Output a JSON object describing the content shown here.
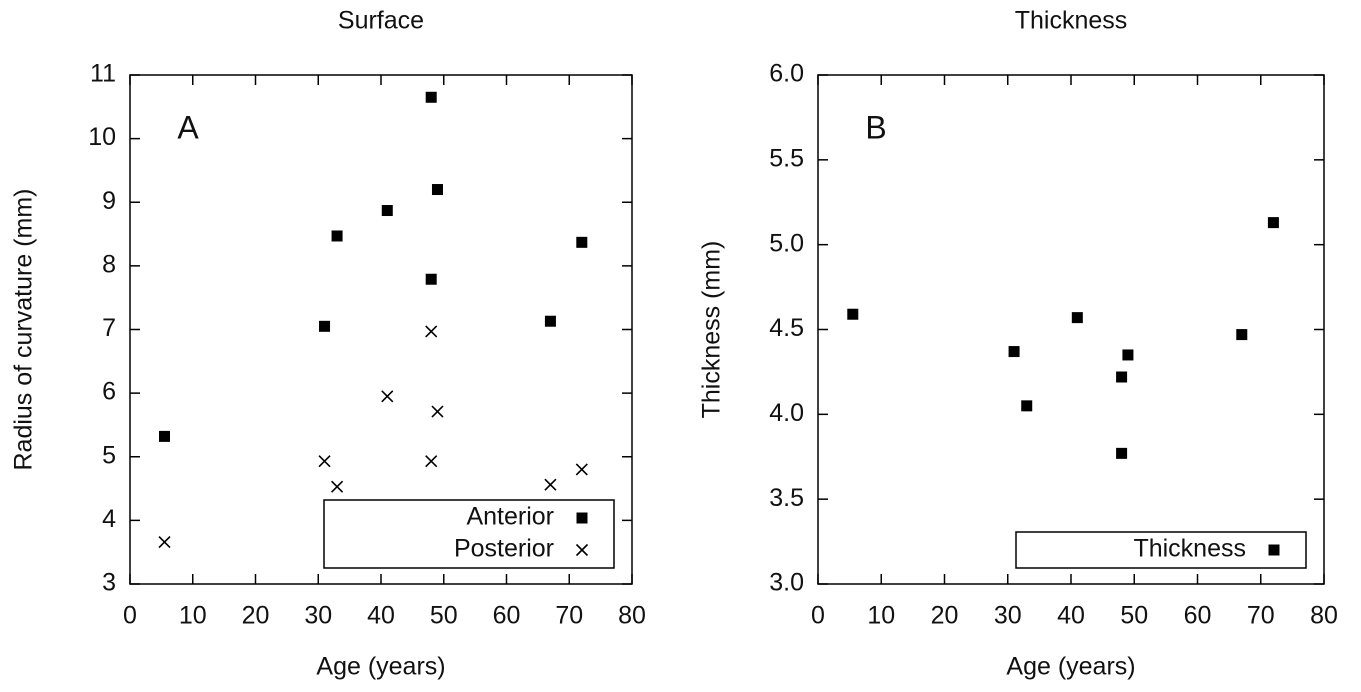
{
  "chart_data": [
    {
      "type": "scatter",
      "title": "Surface",
      "xlabel": "Age (years)",
      "ylabel": "Radius of curvature (mm)",
      "annotation": "A",
      "xlim": [
        0,
        80
      ],
      "xticks": [
        0,
        10,
        20,
        30,
        40,
        50,
        60,
        70,
        80
      ],
      "ylim": [
        3,
        11
      ],
      "yticks": [
        3,
        4,
        5,
        6,
        7,
        8,
        9,
        10,
        11
      ],
      "legend": "lower right",
      "series": [
        {
          "name": "Anterior",
          "color": "#000000",
          "marker": "square",
          "x": [
            5.5,
            31,
            33,
            41,
            48,
            48,
            49,
            67,
            72
          ],
          "y": [
            5.32,
            7.05,
            8.47,
            8.87,
            10.65,
            7.79,
            9.2,
            7.13,
            8.37
          ]
        },
        {
          "name": "Posterior",
          "color": "#000000",
          "marker": "x",
          "x": [
            5.5,
            31,
            33,
            41,
            48,
            48,
            49,
            67,
            72
          ],
          "y": [
            3.66,
            4.93,
            4.53,
            5.95,
            6.97,
            4.93,
            5.71,
            4.56,
            4.8
          ]
        }
      ]
    },
    {
      "type": "scatter",
      "title": "Thickness",
      "xlabel": "Age (years)",
      "ylabel": "Thickness (mm)",
      "annotation": "B",
      "xlim": [
        0,
        80
      ],
      "xticks": [
        0,
        10,
        20,
        30,
        40,
        50,
        60,
        70,
        80
      ],
      "ylim": [
        3,
        6
      ],
      "yticks": [
        {
          "value": 3,
          "label": "3.0"
        },
        3.5,
        {
          "value": 4,
          "label": "4.0"
        },
        4.5,
        {
          "value": 5,
          "label": "5.0"
        },
        5.5,
        {
          "value": 6,
          "label": "6.0"
        }
      ],
      "legend": "lower right",
      "series": [
        {
          "name": "Thickness",
          "color": "#000000",
          "marker": "square",
          "x": [
            5.5,
            31,
            33,
            41,
            48,
            48,
            49,
            67,
            72
          ],
          "y": [
            4.59,
            4.37,
            4.05,
            4.57,
            4.22,
            3.77,
            4.35,
            4.47,
            5.13
          ]
        }
      ]
    }
  ]
}
